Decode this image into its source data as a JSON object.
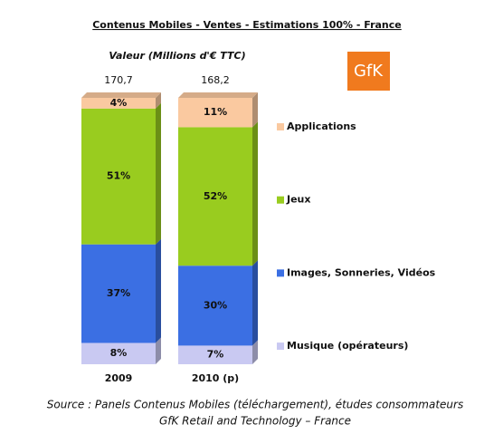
{
  "chart_data": {
    "type": "stacked-bar-100",
    "title": "Contenus  Mobiles  - Ventes  - Estimations 100% - France",
    "subtitle": "Valeur (Millions d'€ TTC)",
    "logo": "GfK",
    "categories": [
      "2009",
      "2010 (p)"
    ],
    "totals": {
      "values": [
        170.7,
        168.2
      ],
      "value_labels": [
        "170,7",
        "168,2"
      ]
    },
    "series": [
      {
        "name": "Musique (opérateurs)",
        "color": "#c9c9f2",
        "values": [
          8,
          7
        ],
        "value_labels": [
          "8%",
          "7%"
        ]
      },
      {
        "name": "Images, Sonneries, Vidéos",
        "color": "#3b6fe3",
        "values": [
          37,
          30
        ],
        "value_labels": [
          "37%",
          "30%"
        ]
      },
      {
        "name": "Jeux",
        "color": "#99cc1f",
        "values": [
          51,
          52
        ],
        "value_labels": [
          "51%",
          "52%"
        ]
      },
      {
        "name": "Applications",
        "color": "#fac9a0",
        "values": [
          4,
          11
        ],
        "value_labels": [
          "4%",
          "11%"
        ]
      }
    ],
    "source": [
      "Source : Panels Contenus Mobiles (téléchargement), études consommateurs",
      "GfK Retail and Technology – France"
    ]
  }
}
